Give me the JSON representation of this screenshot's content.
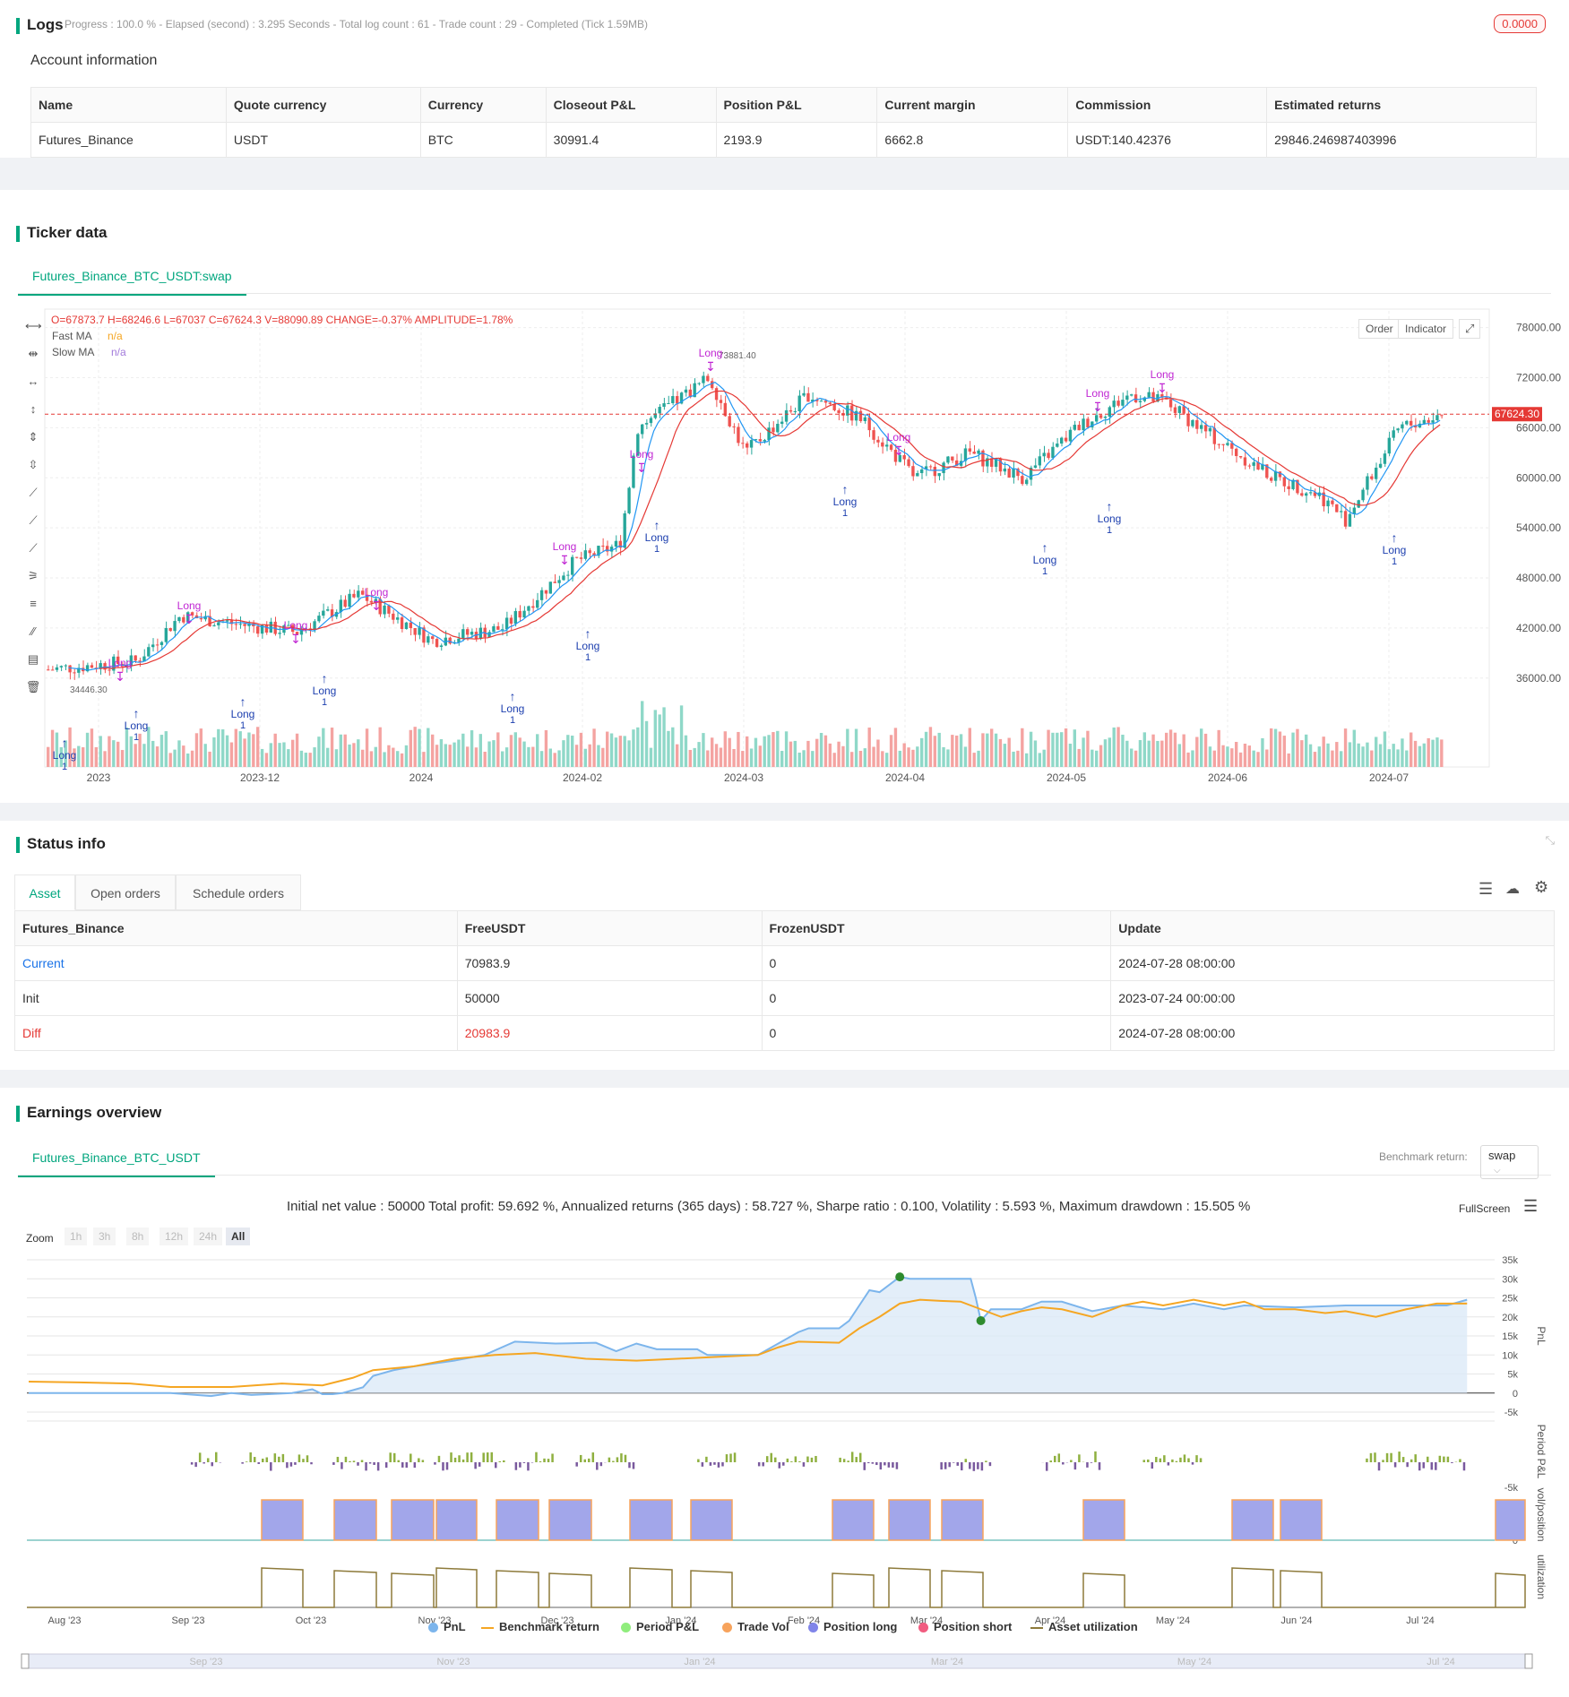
{
  "logs": {
    "title": "Logs",
    "progress": "Progress : 100.0 % - Elapsed (second) : 3.295  Seconds - Total log count : 61 - Trade count : 29 - Completed (Tick 1.59MB)",
    "badge": "0.0000"
  },
  "account": {
    "title": "Account information",
    "headers": [
      "Name",
      "Quote currency",
      "Currency",
      "Closeout P&L",
      "Position P&L",
      "Current margin",
      "Commission",
      "Estimated returns"
    ],
    "row": [
      "Futures_Binance",
      "USDT",
      "BTC",
      "30991.4",
      "2193.9",
      "6662.8",
      "USDT:140.42376",
      "29846.246987403996"
    ]
  },
  "ticker": {
    "title": "Ticker data",
    "tab": "Futures_Binance_BTC_USDT:swap",
    "ohlc": "O=67873.7 H=68246.6 L=67037 C=67624.3 V=88090.89 CHANGE=-0.37% AMPLITUDE=1.78%",
    "fast_ma_label": "Fast MA",
    "fast_ma_value": "n/a",
    "slow_ma_label": "Slow MA",
    "slow_ma_value": "n/a",
    "order_btn": "Order",
    "indicator_btn": "Indicator",
    "current_price": "67624.30",
    "high_label": "73881.40",
    "low_label": "34446.30",
    "y_ticks": [
      "78000.00",
      "72000.00",
      "66000.00",
      "60000.00",
      "54000.00",
      "48000.00",
      "42000.00",
      "36000.00"
    ],
    "x_ticks": [
      "2023",
      "2023-12",
      "2024",
      "2024-02",
      "2024-03",
      "2024-04",
      "2024-05",
      "2024-06",
      "2024-07"
    ],
    "signal_long": "Long",
    "signal_qty": "1"
  },
  "status": {
    "title": "Status info",
    "tabs": [
      "Asset",
      "Open orders",
      "Schedule orders"
    ],
    "headers": [
      "Futures_Binance",
      "FreeUSDT",
      "FrozenUSDT",
      "Update"
    ],
    "rows": [
      [
        "Current",
        "70983.9",
        "0",
        "2024-07-28 08:00:00"
      ],
      [
        "Init",
        "50000",
        "0",
        "2023-07-24 00:00:00"
      ],
      [
        "Diff",
        "20983.9",
        "0",
        "2024-07-28 08:00:00"
      ]
    ]
  },
  "earnings": {
    "title": "Earnings overview",
    "tab": "Futures_Binance_BTC_USDT",
    "benchmark_label": "Benchmark return:",
    "benchmark_value": "swap",
    "summary": "Initial net value : 50000 Total profit: 59.692 %, Annualized returns (365 days) : 58.727 %, Sharpe ratio : 0.100, Volatility : 5.593 %, Maximum drawdown : 15.505 %",
    "fullscreen": "FullScreen",
    "zoom_label": "Zoom",
    "zoom_options": [
      "1h",
      "3h",
      "8h",
      "12h",
      "24h",
      "All"
    ],
    "pnl_ticks": [
      "35k",
      "30k",
      "25k",
      "20k",
      "15k",
      "10k",
      "5k",
      "0",
      "-5k"
    ],
    "pnl_axis": "PnL",
    "period_axis": "Period P&L",
    "period_tick": "-5k",
    "vol_axis": "vol/position",
    "vol_tick": "0",
    "util_axis": "utilization",
    "x_ticks": [
      "Aug '23",
      "Sep '23",
      "Oct '23",
      "Nov '23",
      "Dec '23",
      "Jan '24",
      "Feb '24",
      "Mar '24",
      "Apr '24",
      "May '24",
      "Jun '24",
      "Jul '24"
    ],
    "nav_ticks": [
      "Sep '23",
      "Nov '23",
      "Jan '24",
      "Mar '24",
      "May '24",
      "Jul '24"
    ],
    "legend": [
      "PnL",
      "Benchmark return",
      "Period P&L",
      "Trade Vol",
      "Position long",
      "Position short",
      "Asset utilization"
    ],
    "legend_colors": [
      "#7cb5ec",
      "#f5a623",
      "#90ed7d",
      "#f7a35c",
      "#8085e9",
      "#f15c80",
      "#8d7a3a"
    ]
  }
}
